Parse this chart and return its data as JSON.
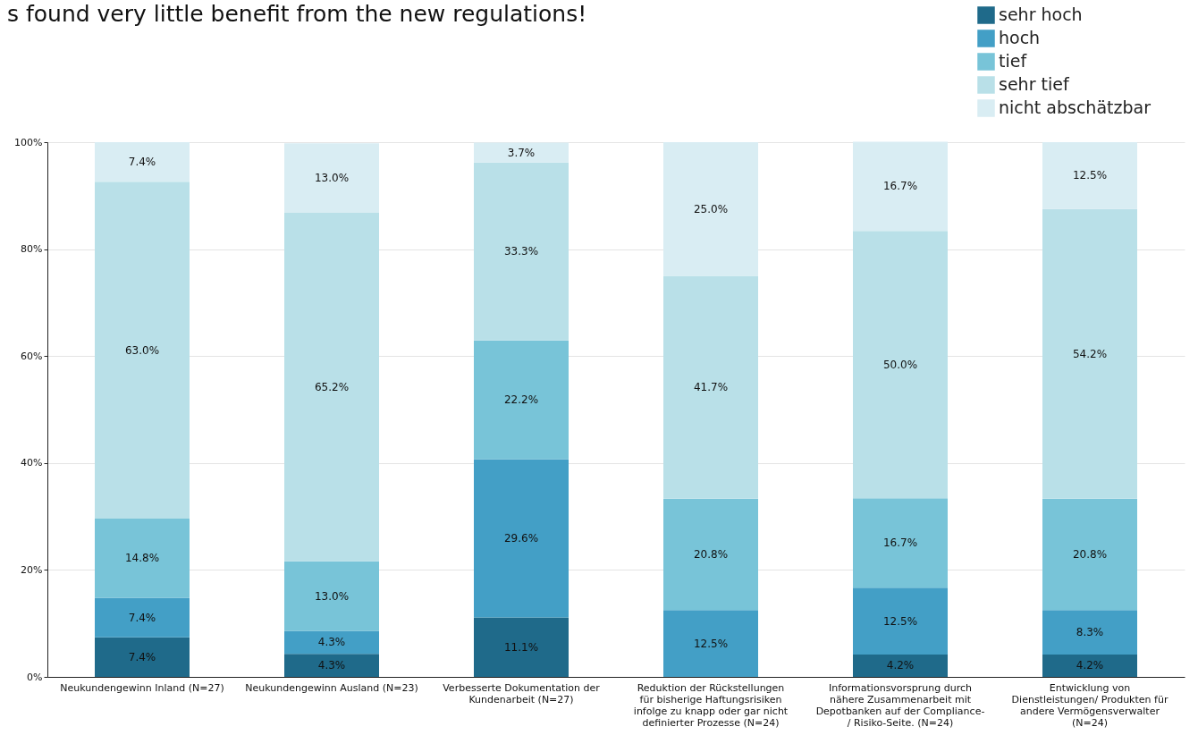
{
  "chart_data": {
    "type": "bar",
    "stacked": true,
    "title": "s found very little  benefit from the new regulations!",
    "categories": [
      "Neukundengewinn Inland (N=27)",
      "Neukundengewinn Ausland (N=23)",
      "Verbesserte Dokumentation der Kundenarbeit (N=27)",
      "Reduktion der Rückstellungen für bisherige Haftungsrisiken infolge zu knapp oder gar nicht definierter Prozesse (N=24)",
      "Informationsvorsprung durch nähere Zusammenarbeit mit Depotbanken auf der Compliance- / Risiko-Seite. (N=24)",
      "Entwicklung von Dienstleistungen/ Produkten für andere Vermögensverwalter (N=24)"
    ],
    "series": [
      {
        "name": "sehr hoch",
        "color": "#1f6a8a",
        "values": [
          7.4,
          4.3,
          11.1,
          null,
          4.2,
          4.2
        ],
        "value_labels": [
          "7.4%",
          "4.3%",
          "11.1%",
          null,
          "4.2%",
          "4.2%"
        ]
      },
      {
        "name": "hoch",
        "color": "#439fc6",
        "values": [
          7.4,
          4.3,
          29.6,
          12.5,
          12.5,
          8.3
        ],
        "value_labels": [
          "7.4%",
          "4.3%",
          "29.6%",
          "12.5%",
          "12.5%",
          "8.3%"
        ]
      },
      {
        "name": "tief",
        "color": "#78c4d8",
        "values": [
          14.8,
          13.0,
          22.2,
          20.8,
          16.7,
          20.8
        ],
        "value_labels": [
          "14.8%",
          "13.0%",
          "22.2%",
          "20.8%",
          "16.7%",
          "20.8%"
        ]
      },
      {
        "name": "sehr tief",
        "color": "#b9e0e8",
        "values": [
          63.0,
          65.2,
          33.3,
          41.7,
          50.0,
          54.2
        ],
        "value_labels": [
          "63.0%",
          "65.2%",
          "33.3%",
          "41.7%",
          "50.0%",
          "54.2%"
        ]
      },
      {
        "name": "nicht abschätzbar",
        "color": "#d9edf3",
        "values": [
          7.4,
          13.0,
          3.7,
          25.0,
          16.7,
          12.5
        ],
        "value_labels": [
          "7.4%",
          "13.0%",
          "3.7%",
          "25.0%",
          "16.7%",
          "12.5%"
        ]
      }
    ],
    "ylim": [
      0,
      100
    ],
    "yticks": [
      {
        "value": 0,
        "label": "0%"
      },
      {
        "value": 20,
        "label": "20%"
      },
      {
        "value": 40,
        "label": "40%"
      },
      {
        "value": 60,
        "label": "60%"
      },
      {
        "value": 80,
        "label": "80%"
      },
      {
        "value": 100,
        "label": "100%"
      }
    ],
    "grid": "y",
    "legend": "top right"
  }
}
